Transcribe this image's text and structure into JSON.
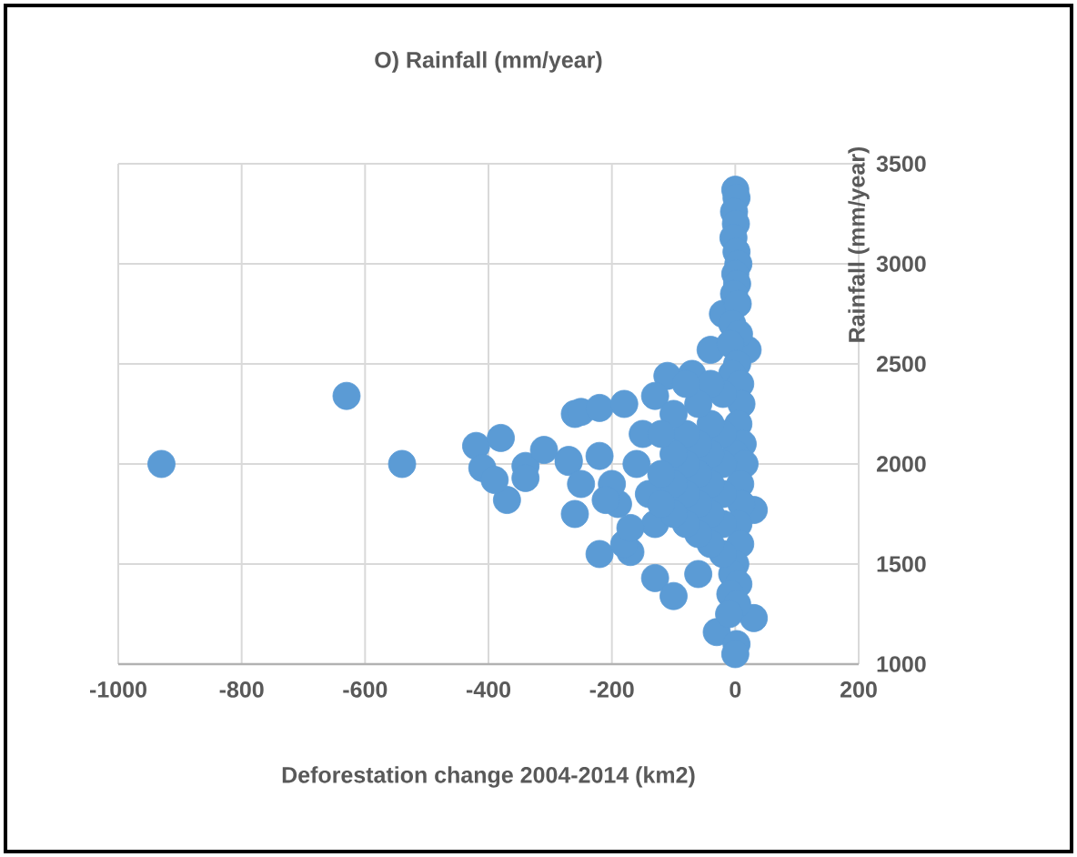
{
  "chart_data": {
    "type": "scatter",
    "title": "O) Rainfall (mm/year)",
    "xlabel": "Deforestation change 2004-2014 (km2)",
    "ylabel": "Rainfall (mm/year)",
    "xlim": [
      -1000,
      200
    ],
    "xticks": [
      -1000,
      -800,
      -600,
      -400,
      -200,
      0,
      200
    ],
    "ylim": [
      1000,
      3500
    ],
    "yticks": [
      1000,
      1500,
      2000,
      2500,
      3000,
      3500
    ],
    "grid": true,
    "marker": "circle",
    "series": [
      {
        "color": "#5b9bd5",
        "x": [
          -930,
          -630,
          -540,
          -420,
          -380,
          -410,
          -370,
          -340,
          -310,
          -340,
          -390,
          -270,
          -260,
          -260,
          -250,
          -220,
          -180,
          -270,
          -220,
          -250,
          -220,
          -170,
          -180,
          -130,
          -100,
          -60,
          -110,
          -70,
          -130,
          -40,
          -20,
          20,
          30,
          30,
          -30,
          -150,
          -160,
          -140,
          -190,
          -200,
          -130,
          -170,
          -210,
          0,
          2,
          -2,
          1,
          -3,
          2,
          5,
          0,
          3,
          -2,
          4,
          -5,
          6,
          -8,
          3,
          -5,
          8,
          10,
          5,
          12,
          0,
          15,
          8,
          10,
          5,
          8,
          0,
          -5,
          5,
          -8,
          3,
          -10,
          2,
          0,
          -20,
          -20,
          -20,
          -20,
          -20,
          -20,
          -40,
          -40,
          -40,
          -40,
          -40,
          -40,
          -60,
          -60,
          -60,
          -60,
          -60,
          -80,
          -80,
          -80,
          -80,
          -80,
          -100,
          -100,
          -100,
          -100,
          -120,
          -120,
          -120
        ],
        "values": [
          2000,
          2340,
          2000,
          2090,
          2130,
          1980,
          1820,
          1990,
          2070,
          1930,
          1920,
          2010,
          2250,
          1750,
          2260,
          2280,
          2300,
          2020,
          2040,
          1900,
          1550,
          1560,
          1600,
          1430,
          1340,
          1450,
          2440,
          2450,
          2340,
          2570,
          2750,
          2570,
          1770,
          1230,
          1160,
          2150,
          2000,
          1850,
          1800,
          1900,
          1700,
          1680,
          1820,
          3370,
          3330,
          3260,
          3200,
          3130,
          3060,
          3000,
          2950,
          2900,
          2850,
          2800,
          2700,
          2650,
          2600,
          2500,
          2450,
          2400,
          2300,
          2200,
          2100,
          2050,
          2000,
          1900,
          1800,
          1700,
          1600,
          1500,
          1450,
          1400,
          1350,
          1300,
          1250,
          1100,
          1050,
          1550,
          1700,
          1850,
          2000,
          2150,
          2350,
          1600,
          1750,
          1900,
          2050,
          2200,
          2400,
          1650,
          1800,
          1950,
          2100,
          2300,
          1700,
          1850,
          2000,
          2150,
          2400,
          1750,
          1900,
          2050,
          2250,
          1800,
          1950,
          2150
        ]
      }
    ]
  }
}
